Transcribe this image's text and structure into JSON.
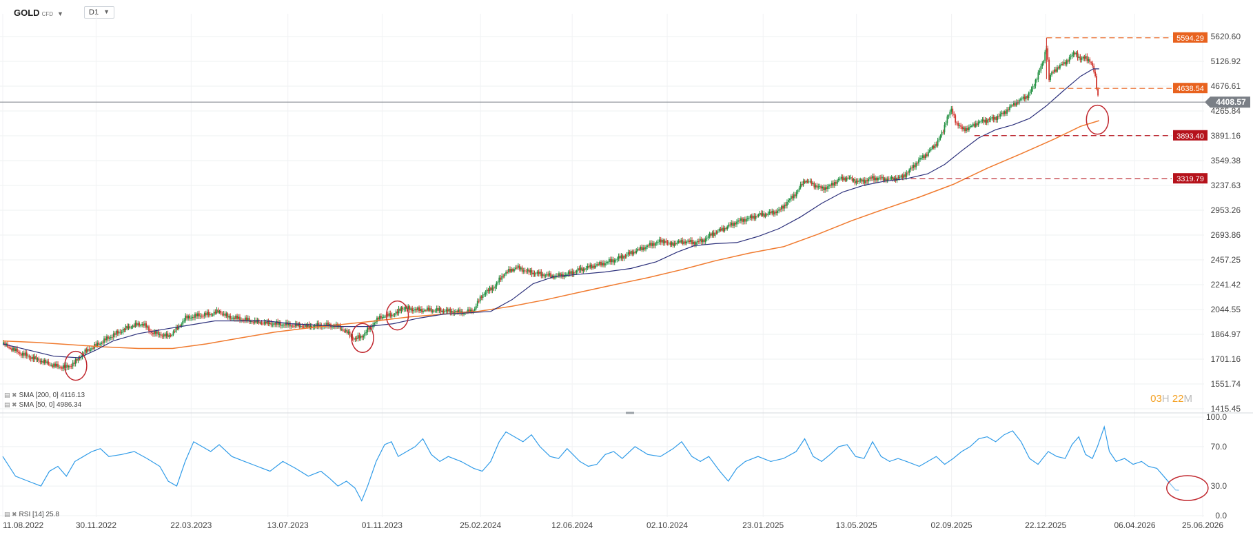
{
  "header": {
    "symbol": "GOLD",
    "symbol_sub": "CFD",
    "timeframe": "D1"
  },
  "indicators": {
    "sma200_label": "SMA [200, 0]",
    "sma200_value": "4116.13",
    "sma50_label": "SMA [50, 0]",
    "sma50_value": "4986.34",
    "rsi_label": "RSI [14]",
    "rsi_value": "25.8"
  },
  "timer": {
    "hours": "03",
    "hours_unit": "H",
    "minutes": "22",
    "minutes_unit": "M"
  },
  "colors": {
    "sma200": "#f07a2e",
    "sma50": "#2b2f7a",
    "rsi": "#2f9be8",
    "up": "#1f8f3f",
    "down": "#d0342c",
    "level_orange": "#e8621e",
    "level_red": "#b5121b",
    "current_price": "#7a7f86",
    "circle": "#c0262d"
  },
  "chart_data": {
    "type": "candlestick",
    "title": "GOLD CFD D1",
    "x_range": [
      "11.08.2022",
      "25.06.2026"
    ],
    "x_ticks": [
      {
        "label": "11.08.2022",
        "t": 0.0
      },
      {
        "label": "30.11.2022",
        "t": 110
      },
      {
        "label": "22.03.2023",
        "t": 222
      },
      {
        "label": "13.07.2023",
        "t": 336
      },
      {
        "label": "01.11.2023",
        "t": 447
      },
      {
        "label": "25.02.2024",
        "t": 563
      },
      {
        "label": "12.06.2024",
        "t": 671
      },
      {
        "label": "02.10.2024",
        "t": 783
      },
      {
        "label": "23.01.2025",
        "t": 896
      },
      {
        "label": "13.05.2025",
        "t": 1006
      },
      {
        "label": "02.09.2025",
        "t": 1118
      },
      {
        "label": "22.12.2025",
        "t": 1229
      },
      {
        "label": "06.04.2026",
        "t": 1334
      },
      {
        "label": "25.06.2026",
        "t": 1414
      }
    ],
    "y_ticks": [
      "5620.60",
      "5126.92",
      "4676.61",
      "4265.84",
      "3891.16",
      "3549.38",
      "3237.63",
      "2953.26",
      "2693.86",
      "2457.25",
      "2241.42",
      "2044.55",
      "1864.97",
      "1701.16",
      "1551.74",
      "1415.45"
    ],
    "y_range": [
      1415.45,
      5620.6
    ],
    "y_scale": "log",
    "current_price": "4408.57",
    "levels": [
      {
        "value": "5594.29",
        "color": "orange",
        "from_t": 1230
      },
      {
        "value": "4638.54",
        "color": "orange",
        "from_t": 1234
      },
      {
        "value": "3893.40",
        "color": "red",
        "from_t": 1145
      },
      {
        "value": "3319.79",
        "color": "red",
        "from_t": 1070
      }
    ],
    "price_path": [
      [
        0,
        1800
      ],
      [
        20,
        1740
      ],
      [
        40,
        1700
      ],
      [
        60,
        1660
      ],
      [
        75,
        1650
      ],
      [
        85,
        1680
      ],
      [
        95,
        1740
      ],
      [
        110,
        1790
      ],
      [
        130,
        1860
      ],
      [
        150,
        1920
      ],
      [
        165,
        1940
      ],
      [
        175,
        1880
      ],
      [
        195,
        1850
      ],
      [
        205,
        1900
      ],
      [
        215,
        1980
      ],
      [
        230,
        2000
      ],
      [
        245,
        2010
      ],
      [
        255,
        2030
      ],
      [
        265,
        1990
      ],
      [
        285,
        1970
      ],
      [
        300,
        1950
      ],
      [
        320,
        1940
      ],
      [
        340,
        1930
      ],
      [
        360,
        1920
      ],
      [
        380,
        1930
      ],
      [
        395,
        1920
      ],
      [
        405,
        1880
      ],
      [
        415,
        1830
      ],
      [
        425,
        1860
      ],
      [
        435,
        1930
      ],
      [
        445,
        1990
      ],
      [
        455,
        2000
      ],
      [
        465,
        2020
      ],
      [
        470,
        2060
      ],
      [
        478,
        2050
      ],
      [
        490,
        2040
      ],
      [
        510,
        2040
      ],
      [
        530,
        2030
      ],
      [
        545,
        2020
      ],
      [
        555,
        2040
      ],
      [
        565,
        2160
      ],
      [
        580,
        2230
      ],
      [
        590,
        2330
      ],
      [
        605,
        2390
      ],
      [
        620,
        2350
      ],
      [
        635,
        2330
      ],
      [
        650,
        2310
      ],
      [
        665,
        2330
      ],
      [
        680,
        2370
      ],
      [
        695,
        2400
      ],
      [
        710,
        2430
      ],
      [
        725,
        2470
      ],
      [
        740,
        2520
      ],
      [
        755,
        2570
      ],
      [
        770,
        2620
      ],
      [
        780,
        2640
      ],
      [
        785,
        2600
      ],
      [
        795,
        2620
      ],
      [
        805,
        2630
      ],
      [
        815,
        2620
      ],
      [
        825,
        2640
      ],
      [
        835,
        2700
      ],
      [
        850,
        2760
      ],
      [
        865,
        2830
      ],
      [
        880,
        2870
      ],
      [
        890,
        2900
      ],
      [
        900,
        2910
      ],
      [
        915,
        2950
      ],
      [
        925,
        3050
      ],
      [
        935,
        3150
      ],
      [
        945,
        3300
      ],
      [
        955,
        3250
      ],
      [
        965,
        3200
      ],
      [
        975,
        3230
      ],
      [
        985,
        3310
      ],
      [
        995,
        3330
      ],
      [
        1005,
        3290
      ],
      [
        1015,
        3290
      ],
      [
        1025,
        3330
      ],
      [
        1035,
        3320
      ],
      [
        1045,
        3310
      ],
      [
        1055,
        3330
      ],
      [
        1060,
        3340
      ],
      [
        1070,
        3440
      ],
      [
        1080,
        3560
      ],
      [
        1090,
        3650
      ],
      [
        1100,
        3780
      ],
      [
        1108,
        3950
      ],
      [
        1112,
        4150
      ],
      [
        1118,
        4280
      ],
      [
        1124,
        4080
      ],
      [
        1130,
        3990
      ],
      [
        1138,
        4000
      ],
      [
        1148,
        4080
      ],
      [
        1158,
        4120
      ],
      [
        1168,
        4150
      ],
      [
        1178,
        4220
      ],
      [
        1185,
        4300
      ],
      [
        1192,
        4380
      ],
      [
        1200,
        4450
      ],
      [
        1208,
        4520
      ],
      [
        1214,
        4650
      ],
      [
        1220,
        4900
      ],
      [
        1226,
        5100
      ],
      [
        1230,
        5450
      ],
      [
        1233,
        4800
      ],
      [
        1236,
        4900
      ],
      [
        1242,
        5000
      ],
      [
        1250,
        5080
      ],
      [
        1258,
        5200
      ],
      [
        1264,
        5310
      ],
      [
        1270,
        5150
      ],
      [
        1276,
        5220
      ],
      [
        1282,
        5100
      ],
      [
        1286,
        4940
      ],
      [
        1288,
        4800
      ],
      [
        1290,
        4550
      ],
      [
        1292,
        4408.57
      ]
    ],
    "sma50_path": [
      [
        0,
        1800
      ],
      [
        30,
        1760
      ],
      [
        60,
        1720
      ],
      [
        90,
        1710
      ],
      [
        110,
        1760
      ],
      [
        130,
        1820
      ],
      [
        160,
        1870
      ],
      [
        190,
        1900
      ],
      [
        220,
        1930
      ],
      [
        250,
        1960
      ],
      [
        280,
        1960
      ],
      [
        310,
        1960
      ],
      [
        340,
        1940
      ],
      [
        370,
        1930
      ],
      [
        400,
        1920
      ],
      [
        430,
        1920
      ],
      [
        460,
        1940
      ],
      [
        490,
        1980
      ],
      [
        520,
        2010
      ],
      [
        550,
        2020
      ],
      [
        575,
        2030
      ],
      [
        600,
        2120
      ],
      [
        625,
        2250
      ],
      [
        650,
        2310
      ],
      [
        680,
        2330
      ],
      [
        710,
        2350
      ],
      [
        740,
        2380
      ],
      [
        770,
        2440
      ],
      [
        795,
        2530
      ],
      [
        815,
        2590
      ],
      [
        840,
        2610
      ],
      [
        865,
        2620
      ],
      [
        890,
        2680
      ],
      [
        915,
        2760
      ],
      [
        940,
        2880
      ],
      [
        965,
        3030
      ],
      [
        990,
        3160
      ],
      [
        1015,
        3240
      ],
      [
        1040,
        3290
      ],
      [
        1065,
        3320
      ],
      [
        1090,
        3380
      ],
      [
        1110,
        3500
      ],
      [
        1130,
        3680
      ],
      [
        1150,
        3860
      ],
      [
        1170,
        3980
      ],
      [
        1190,
        4050
      ],
      [
        1210,
        4150
      ],
      [
        1230,
        4350
      ],
      [
        1250,
        4600
      ],
      [
        1270,
        4850
      ],
      [
        1285,
        4986.34
      ],
      [
        1292,
        4986.34
      ]
    ],
    "sma200_path": [
      [
        0,
        1820
      ],
      [
        40,
        1810
      ],
      [
        80,
        1795
      ],
      [
        120,
        1780
      ],
      [
        160,
        1770
      ],
      [
        200,
        1770
      ],
      [
        240,
        1800
      ],
      [
        280,
        1840
      ],
      [
        320,
        1880
      ],
      [
        360,
        1910
      ],
      [
        400,
        1935
      ],
      [
        440,
        1960
      ],
      [
        480,
        1990
      ],
      [
        520,
        2010
      ],
      [
        560,
        2030
      ],
      [
        600,
        2070
      ],
      [
        640,
        2120
      ],
      [
        680,
        2180
      ],
      [
        720,
        2240
      ],
      [
        760,
        2300
      ],
      [
        800,
        2370
      ],
      [
        840,
        2450
      ],
      [
        880,
        2520
      ],
      [
        920,
        2580
      ],
      [
        960,
        2700
      ],
      [
        1000,
        2840
      ],
      [
        1040,
        2970
      ],
      [
        1080,
        3100
      ],
      [
        1120,
        3250
      ],
      [
        1160,
        3450
      ],
      [
        1200,
        3640
      ],
      [
        1240,
        3850
      ],
      [
        1270,
        4030
      ],
      [
        1292,
        4116.13
      ]
    ],
    "rsi": {
      "label": "RSI [14]",
      "y_range": [
        0,
        100
      ],
      "y_ticks": [
        "100.0",
        "70.0",
        "30.0",
        "0.0"
      ],
      "path": [
        [
          0,
          60
        ],
        [
          15,
          40
        ],
        [
          30,
          35
        ],
        [
          45,
          30
        ],
        [
          55,
          45
        ],
        [
          65,
          50
        ],
        [
          75,
          40
        ],
        [
          85,
          55
        ],
        [
          95,
          60
        ],
        [
          105,
          65
        ],
        [
          115,
          68
        ],
        [
          125,
          60
        ],
        [
          140,
          62
        ],
        [
          155,
          65
        ],
        [
          170,
          58
        ],
        [
          185,
          50
        ],
        [
          195,
          35
        ],
        [
          205,
          30
        ],
        [
          215,
          55
        ],
        [
          225,
          75
        ],
        [
          235,
          70
        ],
        [
          245,
          65
        ],
        [
          255,
          72
        ],
        [
          270,
          60
        ],
        [
          285,
          55
        ],
        [
          300,
          50
        ],
        [
          315,
          45
        ],
        [
          330,
          55
        ],
        [
          345,
          48
        ],
        [
          360,
          40
        ],
        [
          375,
          45
        ],
        [
          385,
          38
        ],
        [
          395,
          30
        ],
        [
          405,
          35
        ],
        [
          415,
          28
        ],
        [
          423,
          15
        ],
        [
          430,
          30
        ],
        [
          440,
          55
        ],
        [
          450,
          72
        ],
        [
          458,
          75
        ],
        [
          466,
          60
        ],
        [
          476,
          65
        ],
        [
          486,
          70
        ],
        [
          495,
          78
        ],
        [
          505,
          62
        ],
        [
          515,
          55
        ],
        [
          525,
          60
        ],
        [
          540,
          55
        ],
        [
          555,
          48
        ],
        [
          565,
          45
        ],
        [
          575,
          55
        ],
        [
          585,
          75
        ],
        [
          593,
          85
        ],
        [
          603,
          80
        ],
        [
          613,
          75
        ],
        [
          623,
          82
        ],
        [
          633,
          70
        ],
        [
          645,
          60
        ],
        [
          655,
          58
        ],
        [
          665,
          68
        ],
        [
          680,
          55
        ],
        [
          690,
          50
        ],
        [
          700,
          52
        ],
        [
          710,
          62
        ],
        [
          720,
          65
        ],
        [
          730,
          58
        ],
        [
          745,
          70
        ],
        [
          760,
          62
        ],
        [
          775,
          60
        ],
        [
          790,
          68
        ],
        [
          800,
          75
        ],
        [
          812,
          60
        ],
        [
          822,
          55
        ],
        [
          832,
          60
        ],
        [
          845,
          45
        ],
        [
          855,
          35
        ],
        [
          865,
          48
        ],
        [
          875,
          55
        ],
        [
          890,
          60
        ],
        [
          905,
          55
        ],
        [
          920,
          58
        ],
        [
          935,
          65
        ],
        [
          945,
          78
        ],
        [
          955,
          60
        ],
        [
          965,
          55
        ],
        [
          975,
          62
        ],
        [
          985,
          70
        ],
        [
          995,
          72
        ],
        [
          1005,
          60
        ],
        [
          1015,
          58
        ],
        [
          1025,
          75
        ],
        [
          1035,
          60
        ],
        [
          1045,
          55
        ],
        [
          1055,
          58
        ],
        [
          1065,
          55
        ],
        [
          1080,
          50
        ],
        [
          1090,
          55
        ],
        [
          1100,
          60
        ],
        [
          1110,
          52
        ],
        [
          1120,
          58
        ],
        [
          1130,
          65
        ],
        [
          1140,
          70
        ],
        [
          1150,
          78
        ],
        [
          1160,
          80
        ],
        [
          1170,
          75
        ],
        [
          1180,
          82
        ],
        [
          1190,
          86
        ],
        [
          1200,
          75
        ],
        [
          1210,
          58
        ],
        [
          1220,
          52
        ],
        [
          1232,
          65
        ],
        [
          1242,
          60
        ],
        [
          1252,
          58
        ],
        [
          1260,
          72
        ],
        [
          1268,
          80
        ],
        [
          1276,
          62
        ],
        [
          1284,
          58
        ],
        [
          1290,
          70
        ],
        [
          1298,
          90
        ],
        [
          1304,
          65
        ],
        [
          1312,
          55
        ],
        [
          1322,
          58
        ],
        [
          1332,
          52
        ],
        [
          1342,
          55
        ],
        [
          1350,
          50
        ],
        [
          1360,
          48
        ],
        [
          1368,
          40
        ],
        [
          1376,
          32
        ],
        [
          1382,
          26
        ],
        [
          1386,
          25.8
        ]
      ]
    },
    "annotations": [
      {
        "type": "circle",
        "pane": "price",
        "t": 86,
        "value": 1660
      },
      {
        "type": "circle",
        "pane": "price",
        "t": 424,
        "value": 1840
      },
      {
        "type": "circle",
        "pane": "price",
        "t": 465,
        "value": 2000
      },
      {
        "type": "circle",
        "pane": "price",
        "t": 1290,
        "value": 4130
      },
      {
        "type": "circle",
        "pane": "rsi",
        "t": 1396,
        "value": 28
      }
    ]
  }
}
